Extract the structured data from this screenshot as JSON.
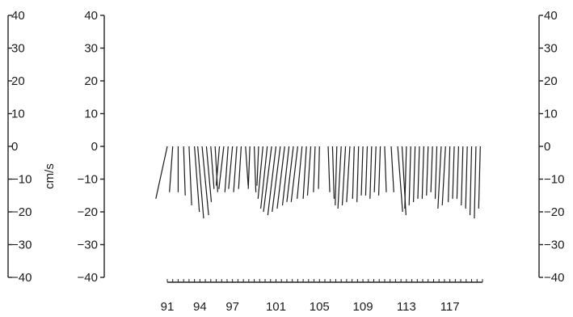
{
  "chart_data": {
    "type": "stick-plot",
    "ylabel": "cm/s",
    "ylim": [
      -40,
      40
    ],
    "y_ticks": [
      40,
      30,
      20,
      10,
      0,
      -10,
      -20,
      -30,
      -40
    ],
    "y_tick_labels": [
      "40",
      "30",
      "20",
      "10",
      "0",
      "−10",
      "−20",
      "−30",
      "−40"
    ],
    "xlim": [
      90,
      120
    ],
    "x_ticks": [
      91,
      94,
      97,
      101,
      105,
      109,
      113,
      117
    ],
    "x_minor_tick_step": 0.5,
    "sticks": [
      {
        "t": 91.0,
        "u": -3.5,
        "v": -16.0
      },
      {
        "t": 91.5,
        "u": -1.0,
        "v": -14.0
      },
      {
        "t": 92.0,
        "u": 0.0,
        "v": -14.0
      },
      {
        "t": 92.5,
        "u": 0.5,
        "v": -15.0
      },
      {
        "t": 93.0,
        "u": 0.8,
        "v": -18.0
      },
      {
        "t": 93.5,
        "u": 1.5,
        "v": -20.0
      },
      {
        "t": 93.8,
        "u": 1.8,
        "v": -22.0
      },
      {
        "t": 94.2,
        "u": 2.0,
        "v": -21.0
      },
      {
        "t": 94.6,
        "u": 1.5,
        "v": -17.0
      },
      {
        "t": 95.0,
        "u": 1.0,
        "v": -13.0
      },
      {
        "t": 95.4,
        "u": 0.8,
        "v": -14.0
      },
      {
        "t": 95.8,
        "u": -1.0,
        "v": -12.0
      },
      {
        "t": 96.2,
        "u": -1.5,
        "v": -13.0
      },
      {
        "t": 96.6,
        "u": -1.0,
        "v": -14.0
      },
      {
        "t": 97.0,
        "u": -1.2,
        "v": -13.0
      },
      {
        "t": 97.4,
        "u": -1.0,
        "v": -14.0
      },
      {
        "t": 97.8,
        "u": -0.8,
        "v": -13.0
      },
      {
        "t": 98.2,
        "u": 0.8,
        "v": -12.0
      },
      {
        "t": 98.6,
        "u": -0.5,
        "v": -13.0
      },
      {
        "t": 99.0,
        "u": 0.5,
        "v": -14.0
      },
      {
        "t": 99.4,
        "u": -0.5,
        "v": -12.0
      },
      {
        "t": 99.8,
        "u": -1.5,
        "v": -16.0
      },
      {
        "t": 100.2,
        "u": -2.0,
        "v": -19.0
      },
      {
        "t": 100.6,
        "u": -2.5,
        "v": -20.0
      },
      {
        "t": 101.0,
        "u": -2.5,
        "v": -21.0
      },
      {
        "t": 101.4,
        "u": -2.5,
        "v": -20.0
      },
      {
        "t": 101.8,
        "u": -2.3,
        "v": -19.0
      },
      {
        "t": 102.2,
        "u": -2.0,
        "v": -18.0
      },
      {
        "t": 102.6,
        "u": -2.0,
        "v": -17.0
      },
      {
        "t": 103.0,
        "u": -2.0,
        "v": -17.0
      },
      {
        "t": 103.4,
        "u": -1.5,
        "v": -16.0
      },
      {
        "t": 103.8,
        "u": -1.0,
        "v": -16.0
      },
      {
        "t": 104.2,
        "u": -1.0,
        "v": -15.0
      },
      {
        "t": 104.6,
        "u": -0.5,
        "v": -14.0
      },
      {
        "t": 105.0,
        "u": -0.3,
        "v": -13.0
      },
      {
        "t": 105.8,
        "u": 0.5,
        "v": -14.0
      },
      {
        "t": 106.2,
        "u": 0.5,
        "v": -16.0
      },
      {
        "t": 106.6,
        "u": -0.5,
        "v": -18.0
      },
      {
        "t": 107.0,
        "u": -1.0,
        "v": -19.0
      },
      {
        "t": 107.4,
        "u": -1.0,
        "v": -18.0
      },
      {
        "t": 107.8,
        "u": -1.0,
        "v": -17.0
      },
      {
        "t": 108.2,
        "u": -0.5,
        "v": -16.0
      },
      {
        "t": 108.6,
        "u": -0.5,
        "v": -17.0
      },
      {
        "t": 109.0,
        "u": -0.5,
        "v": -15.0
      },
      {
        "t": 109.4,
        "u": -0.5,
        "v": -15.0
      },
      {
        "t": 109.8,
        "u": -0.5,
        "v": -16.0
      },
      {
        "t": 110.2,
        "u": -0.5,
        "v": -14.0
      },
      {
        "t": 110.6,
        "u": -0.5,
        "v": -15.0
      },
      {
        "t": 111.0,
        "u": 0.5,
        "v": -14.0
      },
      {
        "t": 111.6,
        "u": 0.8,
        "v": -14.0
      },
      {
        "t": 112.2,
        "u": 1.5,
        "v": -20.0
      },
      {
        "t": 112.6,
        "u": 1.2,
        "v": -21.0
      },
      {
        "t": 113.0,
        "u": -0.5,
        "v": -19.0
      },
      {
        "t": 113.4,
        "u": -0.5,
        "v": -18.0
      },
      {
        "t": 113.8,
        "u": -0.5,
        "v": -17.0
      },
      {
        "t": 114.2,
        "u": -0.5,
        "v": -16.0
      },
      {
        "t": 114.6,
        "u": -0.5,
        "v": -16.0
      },
      {
        "t": 115.0,
        "u": -0.5,
        "v": -15.0
      },
      {
        "t": 115.4,
        "u": -0.5,
        "v": -14.0
      },
      {
        "t": 115.8,
        "u": -0.5,
        "v": -16.0
      },
      {
        "t": 116.2,
        "u": -1.0,
        "v": -19.0
      },
      {
        "t": 116.6,
        "u": -1.0,
        "v": -18.0
      },
      {
        "t": 117.0,
        "u": -0.5,
        "v": -17.0
      },
      {
        "t": 117.4,
        "u": -0.5,
        "v": -16.0
      },
      {
        "t": 117.8,
        "u": -0.5,
        "v": -16.0
      },
      {
        "t": 118.2,
        "u": -0.5,
        "v": -18.0
      },
      {
        "t": 118.6,
        "u": -0.5,
        "v": -19.0
      },
      {
        "t": 119.0,
        "u": -0.5,
        "v": -21.0
      },
      {
        "t": 119.4,
        "u": -0.5,
        "v": -22.0
      },
      {
        "t": 119.8,
        "u": -0.5,
        "v": -19.0
      }
    ]
  }
}
